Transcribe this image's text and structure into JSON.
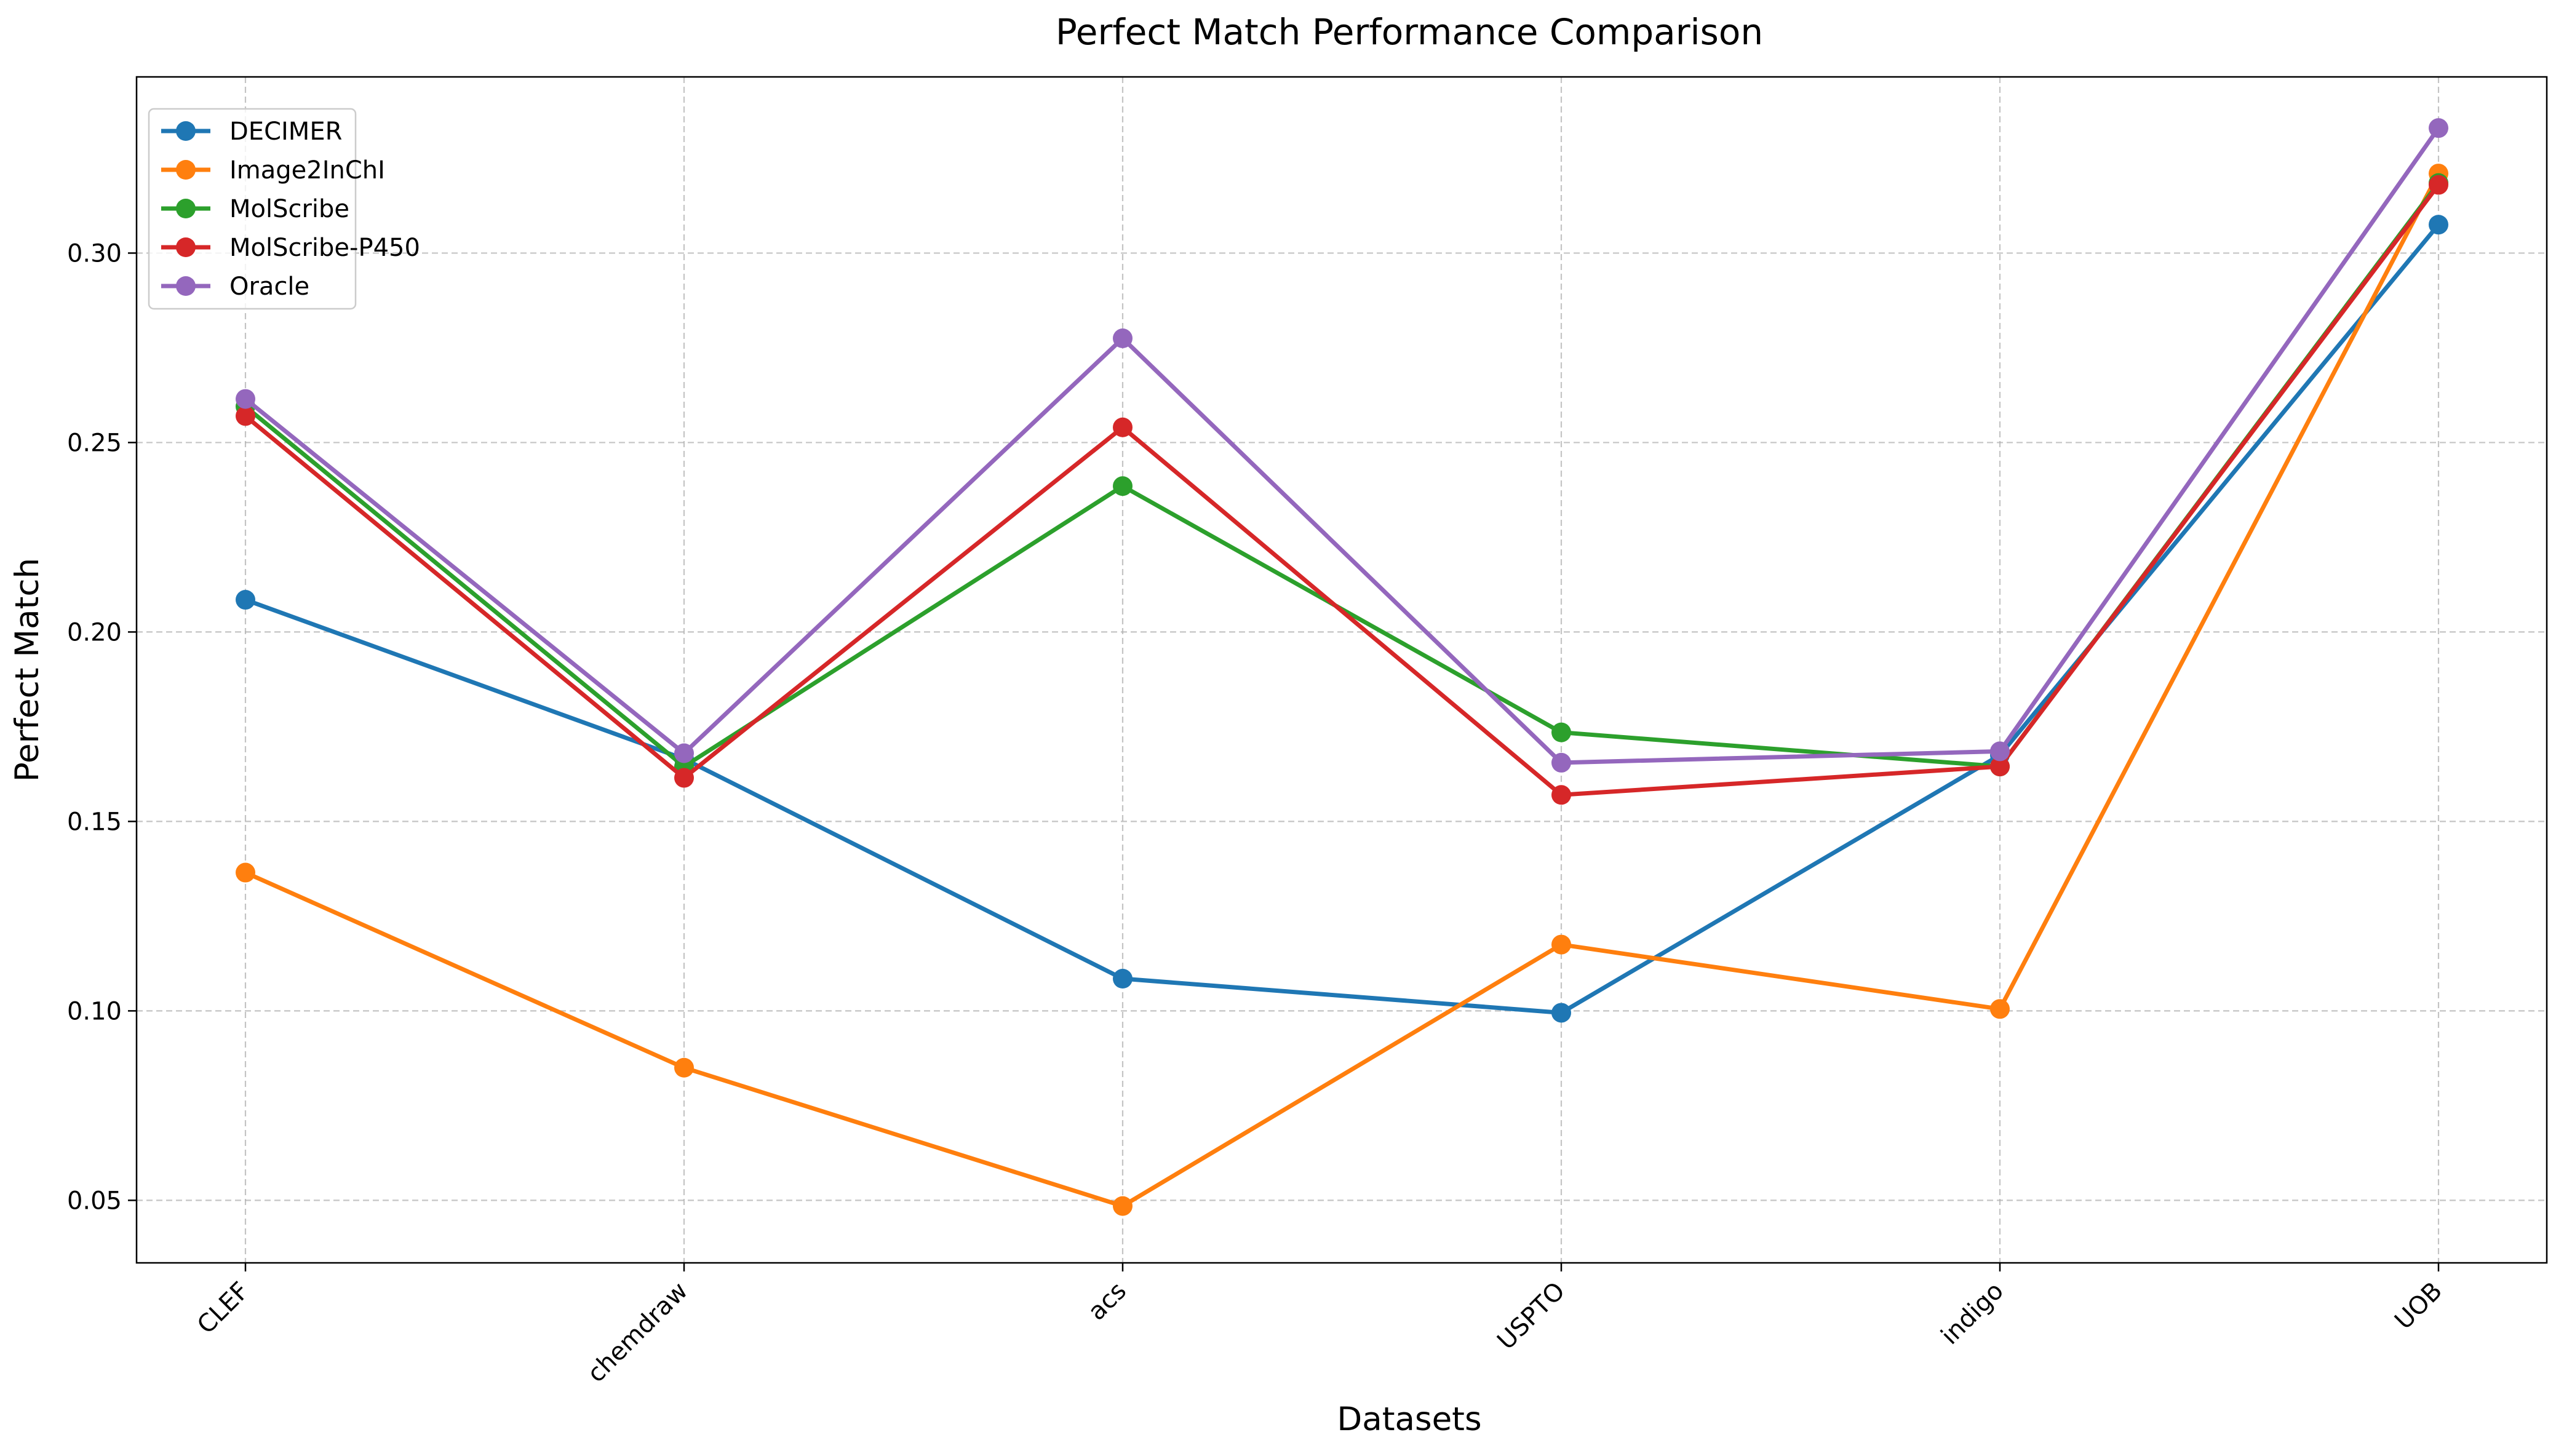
{
  "chart_data": {
    "type": "line",
    "title": "Perfect Match Performance Comparison",
    "xlabel": "Datasets",
    "ylabel": "Perfect Match",
    "categories": [
      "CLEF",
      "chemdraw",
      "acs",
      "USPTO",
      "indigo",
      "UOB"
    ],
    "ylim": [
      0.0335,
      0.3465
    ],
    "yticks": [
      0.05,
      0.1,
      0.15,
      0.2,
      0.25,
      0.3
    ],
    "ytick_labels": [
      "0.05",
      "0.10",
      "0.15",
      "0.20",
      "0.25",
      "0.30"
    ],
    "grid": true,
    "legend_position": "top-left",
    "series": [
      {
        "name": "DECIMER",
        "color": "#1f77b4",
        "values": [
          0.2085,
          0.1665,
          0.1085,
          0.0995,
          0.1675,
          0.3075
        ]
      },
      {
        "name": "Image2InChI",
        "color": "#ff7f0e",
        "values": [
          0.1365,
          0.085,
          0.0485,
          0.1175,
          0.1005,
          0.321
        ]
      },
      {
        "name": "MolScribe",
        "color": "#2ca02c",
        "values": [
          0.2595,
          0.1645,
          0.2385,
          0.1735,
          0.1645,
          0.3185
        ]
      },
      {
        "name": "MolScribe-P450",
        "color": "#d62728",
        "values": [
          0.257,
          0.1615,
          0.254,
          0.157,
          0.1645,
          0.318
        ]
      },
      {
        "name": "Oracle",
        "color": "#9467bd",
        "values": [
          0.2615,
          0.168,
          0.2775,
          0.1655,
          0.1685,
          0.333
        ]
      }
    ]
  }
}
